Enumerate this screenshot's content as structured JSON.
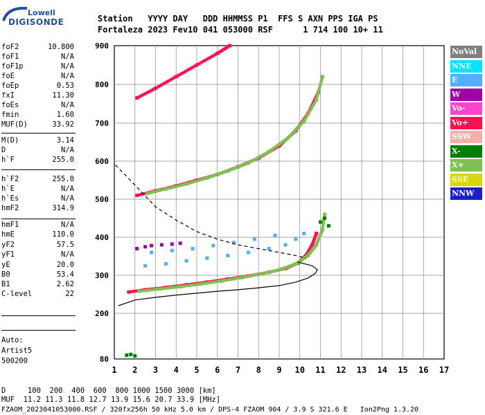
{
  "logo": {
    "line1": "Lowell",
    "line2": "DIGISONDE"
  },
  "header": {
    "line1": "Station   YYYY DAY   DDD HHMMSS P1  FFS S AXN PPS IGA PS",
    "line2": "Fortaleza 2023 Fev10 041 053000 RSF      1 714 100 10+ 11"
  },
  "params": [
    {
      "k": "foF2",
      "v": "10.800"
    },
    {
      "k": "foF1",
      "v": "N/A"
    },
    {
      "k": "foF1p",
      "v": "N/A"
    },
    {
      "k": "foE",
      "v": "N/A"
    },
    {
      "k": "foEp",
      "v": "0.53"
    },
    {
      "k": "fxI",
      "v": "11.30"
    },
    {
      "k": "foEs",
      "v": "N/A"
    },
    {
      "k": "fmin",
      "v": "1.60"
    },
    {
      "k": "MUF(D)",
      "v": "33.92"
    },
    {
      "k": "M(D)",
      "v": "3.14"
    },
    {
      "k": "D",
      "v": "N/A"
    },
    {
      "k": "h`F",
      "v": "255.0"
    },
    {
      "k": "h`F2",
      "v": "255.0"
    },
    {
      "k": "h`E",
      "v": "N/A"
    },
    {
      "k": "h`Es",
      "v": "N/A"
    },
    {
      "k": "hmF2",
      "v": "314.9"
    },
    {
      "k": "hmF1",
      "v": "N/A"
    },
    {
      "k": "hmE",
      "v": "110.0"
    },
    {
      "k": "yF2",
      "v": "57.5"
    },
    {
      "k": "yF1",
      "v": "N/A"
    },
    {
      "k": "yE",
      "v": "20.0"
    },
    {
      "k": "B0",
      "v": "53.4"
    },
    {
      "k": "B1",
      "v": "2.62"
    },
    {
      "k": "C-level",
      "v": "22"
    }
  ],
  "auto": [
    "Auto:",
    "Artist5",
    "500200"
  ],
  "legend": [
    {
      "label": "NoVal",
      "color": "#808080"
    },
    {
      "label": "NNE",
      "color": "#00e5ff"
    },
    {
      "label": "E",
      "color": "#4fb0ff"
    },
    {
      "label": "W",
      "color": "#a000a8"
    },
    {
      "label": "Vo-",
      "color": "#ff44cc"
    },
    {
      "label": "Vo+",
      "color": "#ff1050"
    },
    {
      "label": "SSW",
      "color": "#f4b0a8"
    },
    {
      "label": "X-",
      "color": "#008000"
    },
    {
      "label": "X+",
      "color": "#80c050"
    },
    {
      "label": "SSE",
      "color": "#d8d800"
    },
    {
      "label": "NNW",
      "color": "#1a20c8"
    }
  ],
  "footer": {
    "line1": "D     100  200  400  600  800 1000 1500 3000 [km]",
    "line2": "MUF  11.2 11.3 11.8 12.7 13.9 15.6 20.7 33.9 [MHz]",
    "line3": "FZAOM_2023041053000.RSF / 320fx256h 50 kHz 5.0 km / DPS-4 FZAOM 904 / 3.9 S 321.6 E   Ion2Png 1.3.20"
  },
  "chart_data": {
    "type": "scatter",
    "xlim": [
      1,
      17
    ],
    "ylim": [
      80,
      900
    ],
    "x_ticks": [
      "1",
      "2",
      "3",
      "4",
      "5",
      "6",
      "7",
      "8",
      "9",
      "10",
      "11",
      "12",
      "13",
      "14",
      "15",
      "16",
      "17"
    ],
    "y_ticks": [
      "80",
      "200",
      "300",
      "400",
      "500",
      "600",
      "700",
      "800",
      "900"
    ],
    "y_tick_values": [
      80,
      200,
      300,
      400,
      500,
      600,
      700,
      800,
      900
    ],
    "series": [
      {
        "name": "Vo+",
        "color": "#ff1050",
        "points": [
          [
            1.7,
            256
          ],
          [
            2.5,
            262
          ],
          [
            3.5,
            268
          ],
          [
            4.5,
            275
          ],
          [
            5.5,
            282
          ],
          [
            6.5,
            290
          ],
          [
            7.5,
            298
          ],
          [
            8.5,
            308
          ],
          [
            9.3,
            318
          ],
          [
            9.9,
            332
          ],
          [
            10.3,
            352
          ],
          [
            10.6,
            380
          ],
          [
            10.8,
            410
          ]
        ]
      },
      {
        "name": "X+",
        "color": "#80c050",
        "points": [
          [
            2.2,
            258
          ],
          [
            3.2,
            264
          ],
          [
            4.2,
            270
          ],
          [
            5.2,
            277
          ],
          [
            6.2,
            285
          ],
          [
            7.2,
            294
          ],
          [
            8.2,
            304
          ],
          [
            9.1,
            316
          ],
          [
            9.8,
            330
          ],
          [
            10.4,
            352
          ],
          [
            10.8,
            380
          ],
          [
            11.1,
            420
          ],
          [
            11.2,
            460
          ]
        ]
      },
      {
        "name": "Vo+",
        "color": "#ff1050",
        "points": [
          [
            2.1,
            510
          ],
          [
            3,
            522
          ],
          [
            4,
            535
          ],
          [
            5,
            550
          ],
          [
            6,
            565
          ],
          [
            7,
            585
          ],
          [
            8,
            608
          ],
          [
            9,
            640
          ],
          [
            9.8,
            680
          ],
          [
            10.4,
            725
          ],
          [
            10.9,
            780
          ]
        ]
      },
      {
        "name": "X+",
        "color": "#80c050",
        "points": [
          [
            2.6,
            515
          ],
          [
            3.5,
            527
          ],
          [
            4.5,
            540
          ],
          [
            5.5,
            556
          ],
          [
            6.5,
            574
          ],
          [
            7.5,
            595
          ],
          [
            8.5,
            625
          ],
          [
            9.4,
            660
          ],
          [
            10.2,
            705
          ],
          [
            10.8,
            760
          ],
          [
            11.1,
            820
          ]
        ]
      },
      {
        "name": "Vo+",
        "color": "#ff1050",
        "points": [
          [
            2.1,
            765
          ],
          [
            3,
            790
          ],
          [
            4,
            820
          ],
          [
            5,
            850
          ],
          [
            6,
            880
          ],
          [
            6.6,
            900
          ]
        ]
      },
      {
        "name": "E",
        "color": "#4fb0ff",
        "points": [
          [
            2.5,
            325
          ],
          [
            3.5,
            330
          ],
          [
            4.5,
            338
          ],
          [
            5.5,
            345
          ],
          [
            6.5,
            352
          ],
          [
            7.5,
            360
          ],
          [
            8.5,
            370
          ],
          [
            9.3,
            380
          ],
          [
            9.8,
            395
          ],
          [
            10.2,
            410
          ],
          [
            2.8,
            360
          ],
          [
            3.8,
            365
          ],
          [
            4.8,
            370
          ],
          [
            5.8,
            378
          ],
          [
            6.8,
            386
          ],
          [
            7.8,
            395
          ],
          [
            8.8,
            405
          ]
        ]
      },
      {
        "name": "W",
        "color": "#a000a8",
        "points": [
          [
            2.1,
            370
          ],
          [
            2.5,
            375
          ],
          [
            2.8,
            378
          ],
          [
            3.3,
            380
          ],
          [
            3.8,
            382
          ],
          [
            4.2,
            384
          ]
        ]
      },
      {
        "name": "X-",
        "color": "#008000",
        "points": [
          [
            1.6,
            90
          ],
          [
            1.8,
            92
          ],
          [
            2.0,
            88
          ],
          [
            11.0,
            440
          ],
          [
            11.2,
            450
          ],
          [
            11.4,
            430
          ]
        ]
      }
    ],
    "curves": [
      {
        "name": "profile",
        "style": "solid",
        "color": "#000",
        "points": [
          [
            1.2,
            220
          ],
          [
            2,
            235
          ],
          [
            3,
            242
          ],
          [
            4,
            248
          ],
          [
            5,
            253
          ],
          [
            6,
            258
          ],
          [
            7,
            262
          ],
          [
            8,
            267
          ],
          [
            9,
            273
          ],
          [
            9.8,
            282
          ],
          [
            10.4,
            293
          ],
          [
            10.75,
            305
          ],
          [
            10.85,
            315
          ],
          [
            10.6,
            325
          ],
          [
            9.9,
            335
          ]
        ]
      },
      {
        "name": "MUF",
        "style": "dashed",
        "color": "#000",
        "points": [
          [
            1.05,
            590
          ],
          [
            1.6,
            560
          ],
          [
            2.3,
            520
          ],
          [
            3,
            480
          ],
          [
            4,
            445
          ],
          [
            5,
            415
          ],
          [
            6,
            395
          ],
          [
            7,
            380
          ],
          [
            8,
            370
          ],
          [
            9,
            360
          ],
          [
            9.8,
            352
          ],
          [
            10.3,
            345
          ]
        ]
      }
    ]
  }
}
